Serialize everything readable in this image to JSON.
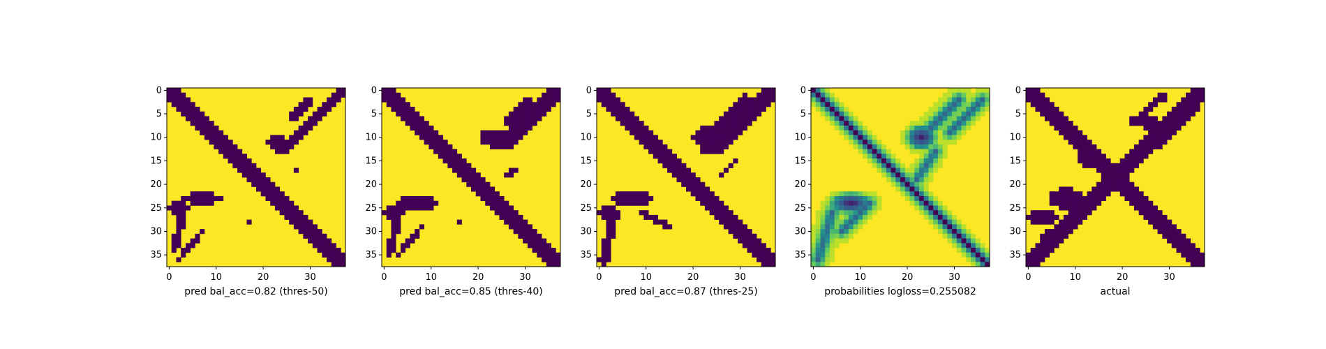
{
  "chart_data": {
    "type": "heatmap",
    "grid_size": 38,
    "colors": {
      "low": "#440154",
      "high": "#fde725",
      "frame": "#000000"
    },
    "ticks": [
      0,
      5,
      10,
      15,
      20,
      25,
      30,
      35
    ],
    "xticks": [
      0,
      10,
      20,
      30
    ],
    "panels": [
      {
        "name": "pred-thres-50",
        "xlabel": "pred bal_acc=0.82 (thres-50)",
        "mode": "binary",
        "main_width": 1.6,
        "main_start": 0,
        "main_end": 37,
        "anti_width": 1.4,
        "anti_start_row": 0,
        "anti_end_row": 13,
        "blobs": [
          {
            "r": 11,
            "c": 23,
            "rx": 2.2,
            "ry": 1.6
          },
          {
            "r": 23,
            "c": 7,
            "rx": 4,
            "ry": 1.3
          },
          {
            "r": 25,
            "c": 2,
            "rx": 2,
            "ry": 1.2
          }
        ],
        "spurs": [
          {
            "r0": 2,
            "c0": 30,
            "r1": 6,
            "c1": 26,
            "w": 0.8
          },
          {
            "r0": 2,
            "c0": 36,
            "r1": 7,
            "c1": 31,
            "w": 0.6
          },
          {
            "r0": 26,
            "c0": 3,
            "r1": 34,
            "c1": 1,
            "w": 0.8
          },
          {
            "r0": 30,
            "c0": 7,
            "r1": 36,
            "c1": 2,
            "w": 0.6
          }
        ],
        "specks": [
          [
            17,
            27
          ],
          [
            28,
            17
          ]
        ]
      },
      {
        "name": "pred-thres-40",
        "xlabel": "pred bal_acc=0.85 (thres-40)",
        "mode": "binary",
        "main_width": 1.8,
        "main_start": 0,
        "main_end": 37,
        "anti_width": 1.6,
        "anti_start_row": 0,
        "anti_end_row": 12,
        "blobs": [
          {
            "r": 10,
            "c": 23,
            "rx": 2.6,
            "ry": 1.9
          },
          {
            "r": 24,
            "c": 7,
            "rx": 4.3,
            "ry": 1.5
          },
          {
            "r": 26,
            "c": 2,
            "rx": 2.2,
            "ry": 1.3
          }
        ],
        "spurs": [
          {
            "r0": 2,
            "c0": 31,
            "r1": 7,
            "c1": 26,
            "w": 0.9
          },
          {
            "r0": 2,
            "c0": 36,
            "r1": 8,
            "c1": 30,
            "w": 0.6
          },
          {
            "r0": 17,
            "c0": 28,
            "r1": 18,
            "c1": 26,
            "w": 0.6
          },
          {
            "r0": 27,
            "c0": 3,
            "r1": 35,
            "c1": 1,
            "w": 0.9
          },
          {
            "r0": 29,
            "c0": 8,
            "r1": 35,
            "c1": 3,
            "w": 0.6
          }
        ],
        "specks": [
          [
            28,
            16
          ]
        ]
      },
      {
        "name": "pred-thres-25",
        "xlabel": "pred bal_acc=0.87 (thres-25)",
        "mode": "binary",
        "main_width": 2.0,
        "main_start": 0,
        "main_end": 37,
        "anti_width": 1.8,
        "anti_start_row": 0,
        "anti_end_row": 13,
        "blobs": [
          {
            "r": 10,
            "c": 23,
            "rx": 3,
            "ry": 2.2
          },
          {
            "r": 23,
            "c": 7,
            "rx": 4.6,
            "ry": 1.7
          },
          {
            "r": 26,
            "c": 2,
            "rx": 2.4,
            "ry": 1.5
          }
        ],
        "spurs": [
          {
            "r0": 2,
            "c0": 31,
            "r1": 8,
            "c1": 25,
            "w": 1.0
          },
          {
            "r0": 2,
            "c0": 36,
            "r1": 8,
            "c1": 30,
            "w": 0.7
          },
          {
            "r0": 15,
            "c0": 29,
            "r1": 18,
            "c1": 26,
            "w": 0.6
          },
          {
            "r0": 27,
            "c0": 3,
            "r1": 36,
            "c1": 1,
            "w": 1.0
          },
          {
            "r0": 26,
            "c0": 9,
            "r1": 29,
            "c1": 15,
            "w": 0.6
          }
        ],
        "specks": []
      },
      {
        "name": "probabilities",
        "xlabel": "probabilities logloss=0.255082",
        "mode": "continuous",
        "main_width": 1.3,
        "main_start": 0,
        "main_end": 37,
        "anti_width": 0,
        "anti_start_row": 0,
        "anti_end_row": 0,
        "blobs": [
          {
            "r": 10,
            "c": 23,
            "rx": 3.2,
            "ry": 2.6
          },
          {
            "r": 24,
            "c": 8,
            "rx": 4.5,
            "ry": 2.2
          }
        ],
        "spurs": [
          {
            "r0": 2,
            "c0": 31,
            "r1": 9,
            "c1": 24,
            "w": 1.2
          },
          {
            "r0": 2,
            "c0": 36,
            "r1": 9,
            "c1": 29,
            "w": 0.9
          },
          {
            "r0": 26,
            "c0": 4,
            "r1": 36,
            "c1": 1,
            "w": 1.2
          },
          {
            "r0": 24,
            "c0": 12,
            "r1": 30,
            "c1": 6,
            "w": 0.9
          },
          {
            "r0": 13,
            "c0": 26,
            "r1": 19,
            "c1": 22,
            "w": 0.9
          }
        ],
        "specks": []
      },
      {
        "name": "actual",
        "xlabel": "actual",
        "mode": "binary",
        "main_width": 1.6,
        "main_start": 0,
        "main_end": 37,
        "anti_width": 1.7,
        "anti_start_row": 0,
        "anti_end_row": 37,
        "blobs": [
          {
            "r": 14,
            "c": 13,
            "rx": 2.6,
            "ry": 2.2
          },
          {
            "r": 23,
            "c": 8,
            "rx": 3.5,
            "ry": 2.2
          },
          {
            "r": 27,
            "c": 3,
            "rx": 3,
            "ry": 1.6
          },
          {
            "r": 7,
            "c": 26,
            "rx": 2.5,
            "ry": 1.4
          }
        ],
        "spurs": [
          {
            "r0": 1,
            "c0": 29,
            "r1": 7,
            "c1": 22,
            "w": 0.8
          },
          {
            "r0": 2,
            "c0": 34,
            "r1": 10,
            "c1": 28,
            "w": 0.6
          },
          {
            "r0": 4,
            "c0": 36,
            "r1": 10,
            "c1": 30,
            "w": 0.6
          },
          {
            "r0": 25,
            "c0": 12,
            "r1": 30,
            "c1": 6,
            "w": 0.6
          },
          {
            "r0": 30,
            "c0": 4,
            "r1": 35,
            "c1": 1,
            "w": 0.6
          }
        ],
        "specks": [
          [
            34,
            3
          ],
          [
            12,
            28
          ],
          [
            11,
            29
          ]
        ]
      }
    ]
  }
}
